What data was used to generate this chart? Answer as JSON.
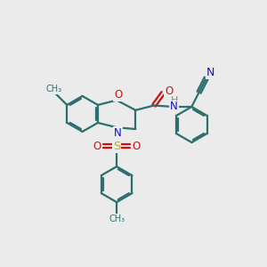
{
  "bg_color": "#ebebeb",
  "bond_color": "#2d6e6e",
  "bond_width": 1.6,
  "atom_colors": {
    "N": "#1111cc",
    "O": "#cc1111",
    "S": "#ccaa00",
    "H": "#888888"
  },
  "font_size_atom": 8.5,
  "fig_size": [
    3.0,
    3.0
  ],
  "dpi": 100
}
